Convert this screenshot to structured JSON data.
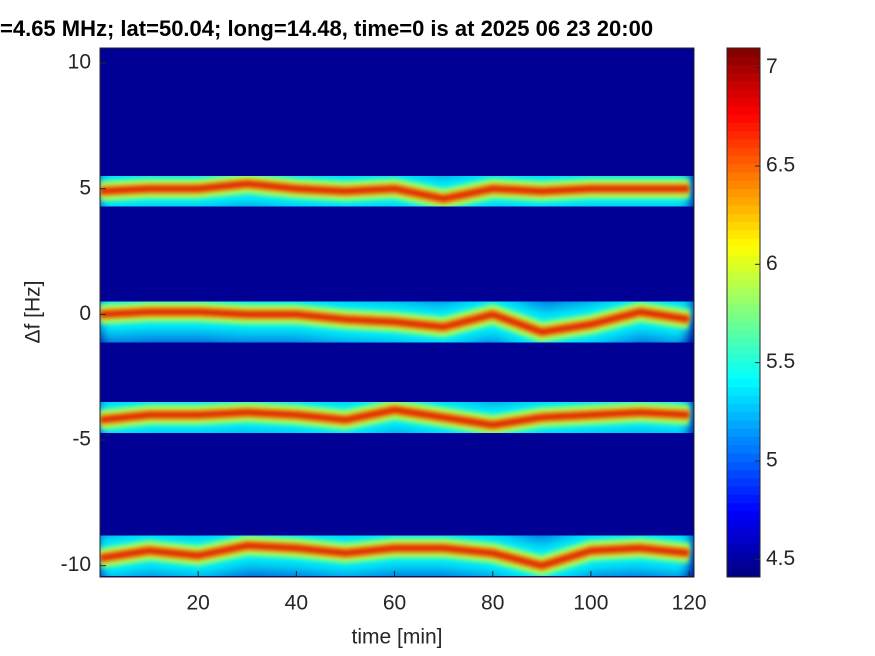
{
  "chart_data": {
    "type": "spectrogram",
    "title": "=4.65 MHz;  lat=50.04; long=14.48, time=0 is at 2025 06 23 20:00",
    "x_label": "time [min]",
    "y_label": "Δf [Hz]",
    "colormap": "jet",
    "x": [
      0,
      10,
      20,
      30,
      40,
      50,
      60,
      70,
      80,
      90,
      100,
      110,
      120
    ],
    "traces": [
      {
        "values": [
          4.9,
          5.0,
          5.0,
          5.2,
          5.0,
          4.9,
          5.0,
          4.6,
          5.0,
          4.9,
          5.0,
          5.0,
          5.0
        ]
      },
      {
        "values": [
          0,
          0.1,
          0.1,
          0,
          0,
          -0.2,
          -0.3,
          -0.5,
          0,
          -0.7,
          -0.4,
          0.1,
          -0.2
        ]
      },
      {
        "values": [
          -4.2,
          -4.0,
          -4.0,
          -3.9,
          -4.0,
          -4.2,
          -3.8,
          -4.1,
          -4.4,
          -4.1,
          -4.0,
          -3.9,
          -4.0
        ]
      },
      {
        "values": [
          -9.7,
          -9.4,
          -9.6,
          -9.2,
          -9.3,
          -9.5,
          -9.3,
          -9.3,
          -9.5,
          -10.0,
          -9.4,
          -9.3,
          -9.5
        ]
      }
    ],
    "xlim": [
      0,
      121
    ],
    "xticks": [
      20,
      40,
      60,
      80,
      100,
      120
    ],
    "ylim": [
      -10.45,
      10.6
    ],
    "yticks": [
      -10,
      -5,
      0,
      5,
      10
    ],
    "clim": [
      4.41,
      7.1
    ],
    "cticks": [
      4.5,
      5,
      5.5,
      6,
      6.5,
      7
    ]
  }
}
